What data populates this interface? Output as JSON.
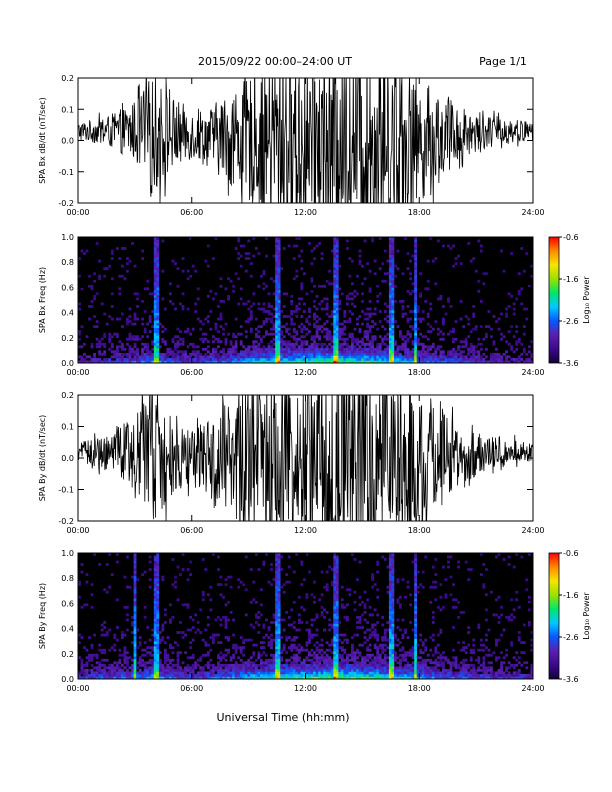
{
  "header": {
    "title": "2015/09/22  00:00–24:00 UT",
    "page": "Page 1/1"
  },
  "xaxis_label": "Universal Time (hh:mm)",
  "colors": {
    "trace": "#000000",
    "spectrogram_background": "#000000",
    "colormap": [
      "#10003a",
      "#3a0a8a",
      "#5a1fb0",
      "#0a57ff",
      "#00c8ff",
      "#00e66b",
      "#9be000",
      "#f4e600",
      "#ff8a00",
      "#ff0000"
    ]
  },
  "chart_data": [
    {
      "type": "line",
      "title": "",
      "ylabel": "SPA Bx dB/dt (nT/sec)",
      "xlabel": "",
      "xlim": [
        "00:00",
        "24:00"
      ],
      "ylim": [
        -0.2,
        0.2
      ],
      "xticks": [
        "00:00",
        "06:00",
        "12:00",
        "18:00",
        "24:00"
      ],
      "yticks": [
        "-0.2",
        "-0.1",
        "0.0",
        "0.1",
        "0.2"
      ],
      "grid": false,
      "series": [
        {
          "x_hours": [
            0,
            1,
            2,
            3,
            4,
            5,
            6,
            7,
            8,
            9,
            10,
            11,
            12,
            13,
            14,
            15,
            16,
            17,
            18,
            19,
            20,
            21,
            22,
            23,
            24
          ],
          "center": [
            0.03,
            0.03,
            0.03,
            0.03,
            0.02,
            0.02,
            0.02,
            0.01,
            0.01,
            0.0,
            0.0,
            0.0,
            0.0,
            0.0,
            0.0,
            0.0,
            0.0,
            0.0,
            0.0,
            0.01,
            0.02,
            0.03,
            0.03,
            0.03,
            0.03
          ],
          "amplitude": [
            0.03,
            0.04,
            0.06,
            0.1,
            0.2,
            0.12,
            0.08,
            0.1,
            0.15,
            0.2,
            0.25,
            0.3,
            0.3,
            0.3,
            0.3,
            0.3,
            0.3,
            0.28,
            0.2,
            0.15,
            0.1,
            0.06,
            0.05,
            0.04,
            0.03
          ]
        }
      ]
    },
    {
      "type": "heatmap",
      "title": "",
      "ylabel": "SPA Bx Freq (Hz)",
      "xlabel": "",
      "xlim": [
        "00:00",
        "24:00"
      ],
      "ylim": [
        0.0,
        1.0
      ],
      "xticks": [
        "00:00",
        "06:00",
        "12:00",
        "18:00",
        "24:00"
      ],
      "yticks": [
        "0.0",
        "0.2",
        "0.4",
        "0.6",
        "0.8",
        "1.0"
      ],
      "colorbar": {
        "label": "Log₁₀ Power",
        "range": [
          -3.6,
          -0.6
        ],
        "ticks": [
          "-0.6",
          "-1.6",
          "-2.6",
          "-3.6"
        ]
      },
      "activity_hours": [
        0,
        1,
        2,
        3,
        4,
        5,
        6,
        7,
        8,
        9,
        10,
        11,
        12,
        13,
        14,
        15,
        16,
        17,
        18,
        19,
        20,
        21,
        22,
        23,
        24
      ],
      "activity": [
        0.25,
        0.3,
        0.35,
        0.45,
        0.6,
        0.4,
        0.35,
        0.4,
        0.5,
        0.6,
        0.7,
        0.75,
        0.8,
        0.85,
        0.85,
        0.8,
        0.75,
        0.65,
        0.55,
        0.45,
        0.4,
        0.35,
        0.3,
        0.25,
        0.2
      ],
      "bright_lines_hours": [
        4.1,
        10.5,
        13.6,
        16.5,
        17.8
      ]
    },
    {
      "type": "line",
      "title": "",
      "ylabel": "SPA By dB/dt (nT/sec)",
      "xlabel": "",
      "xlim": [
        "00:00",
        "24:00"
      ],
      "ylim": [
        -0.2,
        0.2
      ],
      "xticks": [
        "00:00",
        "06:00",
        "12:00",
        "18:00",
        "24:00"
      ],
      "yticks": [
        "-0.2",
        "-0.1",
        "0.0",
        "0.1",
        "0.2"
      ],
      "grid": false,
      "series": [
        {
          "x_hours": [
            0,
            1,
            2,
            3,
            4,
            5,
            6,
            7,
            8,
            9,
            10,
            11,
            12,
            13,
            14,
            15,
            16,
            17,
            18,
            19,
            20,
            21,
            22,
            23,
            24
          ],
          "center": [
            0.02,
            0.02,
            0.02,
            0.01,
            0.01,
            0.0,
            0.0,
            0.0,
            0.0,
            0.0,
            0.0,
            0.0,
            0.0,
            0.0,
            0.0,
            0.0,
            0.0,
            0.0,
            0.0,
            0.0,
            0.01,
            0.01,
            0.02,
            0.02,
            0.02
          ],
          "amplitude": [
            0.03,
            0.05,
            0.08,
            0.12,
            0.22,
            0.12,
            0.09,
            0.12,
            0.2,
            0.25,
            0.3,
            0.3,
            0.3,
            0.3,
            0.3,
            0.3,
            0.3,
            0.28,
            0.22,
            0.15,
            0.1,
            0.07,
            0.05,
            0.04,
            0.03
          ]
        }
      ]
    },
    {
      "type": "heatmap",
      "title": "",
      "ylabel": "SPA By Freq (Hz)",
      "xlabel": "",
      "xlim": [
        "00:00",
        "24:00"
      ],
      "ylim": [
        0.0,
        1.0
      ],
      "xticks": [
        "00:00",
        "06:00",
        "12:00",
        "18:00",
        "24:00"
      ],
      "yticks": [
        "0.0",
        "0.2",
        "0.4",
        "0.6",
        "0.8",
        "1.0"
      ],
      "colorbar": {
        "label": "Log₁₀ Power",
        "range": [
          -3.6,
          -0.6
        ],
        "ticks": [
          "-0.6",
          "-1.6",
          "-2.6",
          "-3.6"
        ]
      },
      "activity_hours": [
        0,
        1,
        2,
        3,
        4,
        5,
        6,
        7,
        8,
        9,
        10,
        11,
        12,
        13,
        14,
        15,
        16,
        17,
        18,
        19,
        20,
        21,
        22,
        23,
        24
      ],
      "activity": [
        0.35,
        0.4,
        0.45,
        0.5,
        0.6,
        0.45,
        0.4,
        0.45,
        0.55,
        0.65,
        0.75,
        0.8,
        0.85,
        0.9,
        0.9,
        0.85,
        0.8,
        0.7,
        0.6,
        0.5,
        0.45,
        0.4,
        0.35,
        0.3,
        0.3
      ],
      "bright_lines_hours": [
        3.0,
        4.1,
        10.5,
        13.6,
        16.5,
        17.8
      ]
    }
  ]
}
